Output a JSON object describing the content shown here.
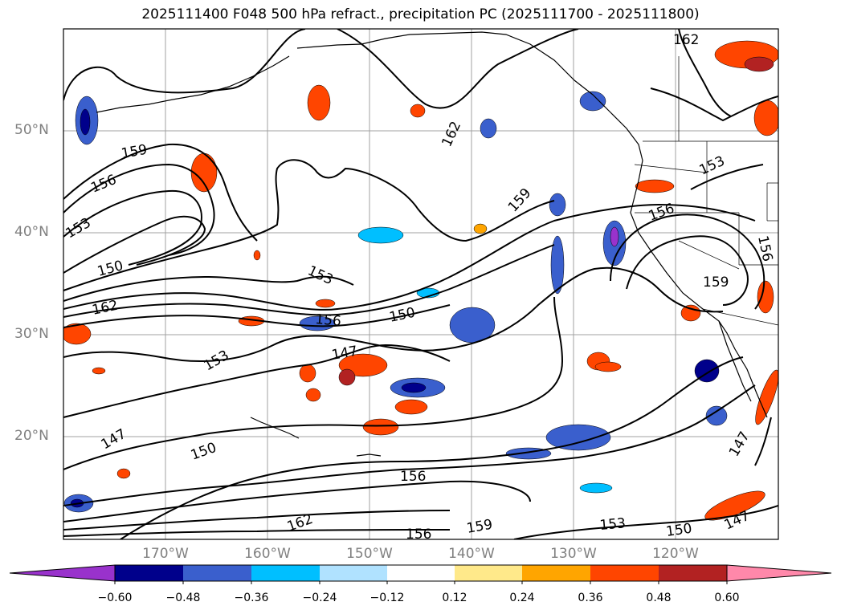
{
  "title": "2025111400 F048 500 hPa refract., precipitation PC (2025111700 - 2025111800)",
  "latitude_labels": [
    "50°N",
    "40°N",
    "30°N",
    "20°N"
  ],
  "longitude_labels": [
    "170°W",
    "160°W",
    "150°W",
    "140°W",
    "130°W",
    "120°W"
  ],
  "contour_labels": [
    "162",
    "159",
    "156",
    "153",
    "150",
    "162",
    "147",
    "153",
    "156",
    "150",
    "156",
    "153",
    "147",
    "150",
    "156",
    "159",
    "162",
    "159",
    "162",
    "153",
    "156",
    "156",
    "159",
    "150",
    "153",
    "150",
    "147",
    "147"
  ],
  "colorbar": {
    "ticks": [
      "−0.60",
      "−0.48",
      "−0.36",
      "−0.24",
      "−0.12",
      "0.12",
      "0.24",
      "0.36",
      "0.48",
      "0.60"
    ],
    "colors": [
      "#9932cc",
      "#00008b",
      "#3a5fcd",
      "#00bfff",
      "#b0e2ff",
      "#ffffff",
      "#ffe98a",
      "#ffa500",
      "#ff4500",
      "#b22222",
      "#ff88aa"
    ]
  },
  "colors": {
    "contour": "#000000",
    "grid": "#a0a0a0",
    "axis_label": "#808080"
  }
}
